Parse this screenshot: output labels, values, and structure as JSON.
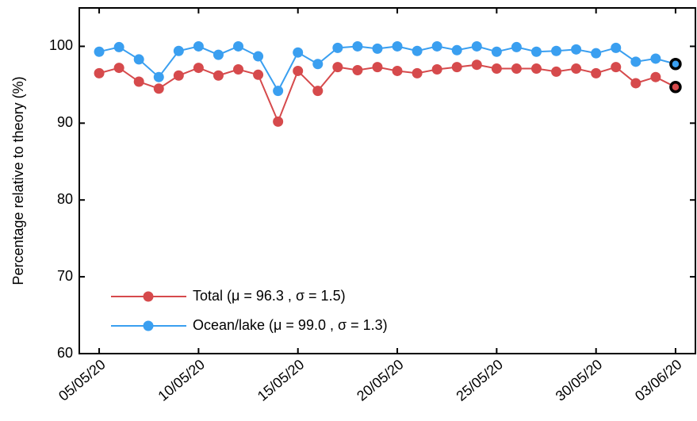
{
  "chart_data": {
    "type": "line",
    "y_label": "Percentage relative to theory (%)",
    "x": [
      "05/05/20",
      "06/05/20",
      "07/05/20",
      "08/05/20",
      "09/05/20",
      "10/05/20",
      "11/05/20",
      "12/05/20",
      "13/05/20",
      "14/05/20",
      "15/05/20",
      "16/05/20",
      "17/05/20",
      "18/05/20",
      "19/05/20",
      "20/05/20",
      "21/05/20",
      "22/05/20",
      "23/05/20",
      "24/05/20",
      "25/05/20",
      "26/05/20",
      "27/05/20",
      "28/05/20",
      "29/05/20",
      "30/05/20",
      "31/05/20",
      "01/06/20",
      "02/06/20",
      "03/06/20"
    ],
    "series": [
      {
        "name": "Total (μ = 96.3 , σ = 1.5)",
        "color": "#d64a4c",
        "values": [
          96.5,
          97.2,
          95.4,
          94.5,
          96.2,
          97.2,
          96.2,
          97.0,
          96.3,
          90.2,
          96.8,
          94.2,
          97.3,
          96.9,
          97.3,
          96.8,
          96.5,
          97.0,
          97.3,
          97.6,
          97.1,
          97.1,
          97.1,
          96.7,
          97.1,
          96.5,
          97.3,
          95.2,
          96.0,
          94.7
        ]
      },
      {
        "name": "Ocean/lake (μ = 99.0 , σ = 1.3)",
        "color": "#3a9ff0",
        "values": [
          99.3,
          99.9,
          98.3,
          96.0,
          99.4,
          100.0,
          98.9,
          100.0,
          98.7,
          94.2,
          99.2,
          97.7,
          99.8,
          100.0,
          99.7,
          100.0,
          99.4,
          100.0,
          99.5,
          100.0,
          99.3,
          99.9,
          99.3,
          99.4,
          99.6,
          99.1,
          99.8,
          98.0,
          98.4,
          97.7
        ]
      }
    ],
    "xlim": [
      "04/05/20",
      "04/06/20"
    ],
    "xticks": [
      "05/05/20",
      "10/05/20",
      "15/05/20",
      "20/05/20",
      "25/05/20",
      "30/05/20",
      "03/06/20"
    ],
    "ylim": [
      60,
      105
    ],
    "yticks": [
      60,
      70,
      80,
      90,
      100
    ],
    "legend": "lower left",
    "highlight_last": true
  }
}
